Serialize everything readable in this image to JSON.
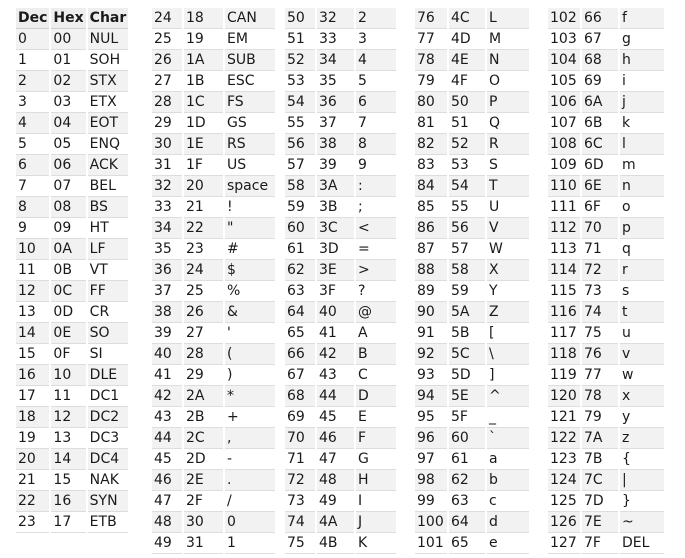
{
  "header": {
    "dec": "Dec",
    "hex": "Hex",
    "char": "Char"
  },
  "columns": [
    [
      [
        "0",
        "00",
        "NUL"
      ],
      [
        "1",
        "01",
        "SOH"
      ],
      [
        "2",
        "02",
        "STX"
      ],
      [
        "3",
        "03",
        "ETX"
      ],
      [
        "4",
        "04",
        "EOT"
      ],
      [
        "5",
        "05",
        "ENQ"
      ],
      [
        "6",
        "06",
        "ACK"
      ],
      [
        "7",
        "07",
        "BEL"
      ],
      [
        "8",
        "08",
        "BS"
      ],
      [
        "9",
        "09",
        "HT"
      ],
      [
        "10",
        "0A",
        "LF"
      ],
      [
        "11",
        "0B",
        "VT"
      ],
      [
        "12",
        "0C",
        "FF"
      ],
      [
        "13",
        "0D",
        "CR"
      ],
      [
        "14",
        "0E",
        "SO"
      ],
      [
        "15",
        "0F",
        "SI"
      ],
      [
        "16",
        "10",
        "DLE"
      ],
      [
        "17",
        "11",
        "DC1"
      ],
      [
        "18",
        "12",
        "DC2"
      ],
      [
        "19",
        "13",
        "DC3"
      ],
      [
        "20",
        "14",
        "DC4"
      ],
      [
        "21",
        "15",
        "NAK"
      ],
      [
        "22",
        "16",
        "SYN"
      ],
      [
        "23",
        "17",
        "ETB"
      ]
    ],
    [
      [
        "24",
        "18",
        "CAN"
      ],
      [
        "25",
        "19",
        "EM"
      ],
      [
        "26",
        "1A",
        "SUB"
      ],
      [
        "27",
        "1B",
        "ESC"
      ],
      [
        "28",
        "1C",
        "FS"
      ],
      [
        "29",
        "1D",
        "GS"
      ],
      [
        "30",
        "1E",
        "RS"
      ],
      [
        "31",
        "1F",
        "US"
      ],
      [
        "32",
        "20",
        "space"
      ],
      [
        "33",
        "21",
        "!"
      ],
      [
        "34",
        "22",
        "\""
      ],
      [
        "35",
        "23",
        "#"
      ],
      [
        "36",
        "24",
        "$"
      ],
      [
        "37",
        "25",
        "%"
      ],
      [
        "38",
        "26",
        "&"
      ],
      [
        "39",
        "27",
        "'"
      ],
      [
        "40",
        "28",
        "("
      ],
      [
        "41",
        "29",
        ")"
      ],
      [
        "42",
        "2A",
        "*"
      ],
      [
        "43",
        "2B",
        "+"
      ],
      [
        "44",
        "2C",
        ","
      ],
      [
        "45",
        "2D",
        "-"
      ],
      [
        "46",
        "2E",
        "."
      ],
      [
        "47",
        "2F",
        "/"
      ],
      [
        "48",
        "30",
        "0"
      ],
      [
        "49",
        "31",
        "1"
      ]
    ],
    [
      [
        "50",
        "32",
        "2"
      ],
      [
        "51",
        "33",
        "3"
      ],
      [
        "52",
        "34",
        "4"
      ],
      [
        "53",
        "35",
        "5"
      ],
      [
        "54",
        "36",
        "6"
      ],
      [
        "55",
        "37",
        "7"
      ],
      [
        "56",
        "38",
        "8"
      ],
      [
        "57",
        "39",
        "9"
      ],
      [
        "58",
        "3A",
        ":"
      ],
      [
        "59",
        "3B",
        ";"
      ],
      [
        "60",
        "3C",
        "<"
      ],
      [
        "61",
        "3D",
        "="
      ],
      [
        "62",
        "3E",
        ">"
      ],
      [
        "63",
        "3F",
        "?"
      ],
      [
        "64",
        "40",
        "@"
      ],
      [
        "65",
        "41",
        "A"
      ],
      [
        "66",
        "42",
        "B"
      ],
      [
        "67",
        "43",
        "C"
      ],
      [
        "68",
        "44",
        "D"
      ],
      [
        "69",
        "45",
        "E"
      ],
      [
        "70",
        "46",
        "F"
      ],
      [
        "71",
        "47",
        "G"
      ],
      [
        "72",
        "48",
        "H"
      ],
      [
        "73",
        "49",
        "I"
      ],
      [
        "74",
        "4A",
        "J"
      ],
      [
        "75",
        "4B",
        "K"
      ]
    ],
    [
      [
        "76",
        "4C",
        "L"
      ],
      [
        "77",
        "4D",
        "M"
      ],
      [
        "78",
        "4E",
        "N"
      ],
      [
        "79",
        "4F",
        "O"
      ],
      [
        "80",
        "50",
        "P"
      ],
      [
        "81",
        "51",
        "Q"
      ],
      [
        "82",
        "52",
        "R"
      ],
      [
        "83",
        "53",
        "S"
      ],
      [
        "84",
        "54",
        "T"
      ],
      [
        "85",
        "55",
        "U"
      ],
      [
        "86",
        "56",
        "V"
      ],
      [
        "87",
        "57",
        "W"
      ],
      [
        "88",
        "58",
        "X"
      ],
      [
        "89",
        "59",
        "Y"
      ],
      [
        "90",
        "5A",
        "Z"
      ],
      [
        "91",
        "5B",
        "["
      ],
      [
        "92",
        "5C",
        "\\"
      ],
      [
        "93",
        "5D",
        "]"
      ],
      [
        "94",
        "5E",
        "^"
      ],
      [
        "95",
        "5F",
        "_"
      ],
      [
        "96",
        "60",
        "`"
      ],
      [
        "97",
        "61",
        "a"
      ],
      [
        "98",
        "62",
        "b"
      ],
      [
        "99",
        "63",
        "c"
      ],
      [
        "100",
        "64",
        "d"
      ],
      [
        "101",
        "65",
        "e"
      ]
    ],
    [
      [
        "102",
        "66",
        "f"
      ],
      [
        "103",
        "67",
        "g"
      ],
      [
        "104",
        "68",
        "h"
      ],
      [
        "105",
        "69",
        "i"
      ],
      [
        "106",
        "6A",
        "j"
      ],
      [
        "107",
        "6B",
        "k"
      ],
      [
        "108",
        "6C",
        "l"
      ],
      [
        "109",
        "6D",
        "m"
      ],
      [
        "110",
        "6E",
        "n"
      ],
      [
        "111",
        "6F",
        "o"
      ],
      [
        "112",
        "70",
        "p"
      ],
      [
        "113",
        "71",
        "q"
      ],
      [
        "114",
        "72",
        "r"
      ],
      [
        "115",
        "73",
        "s"
      ],
      [
        "116",
        "74",
        "t"
      ],
      [
        "117",
        "75",
        "u"
      ],
      [
        "118",
        "76",
        "v"
      ],
      [
        "119",
        "77",
        "w"
      ],
      [
        "120",
        "78",
        "x"
      ],
      [
        "121",
        "79",
        "y"
      ],
      [
        "122",
        "7A",
        "z"
      ],
      [
        "123",
        "7B",
        "{"
      ],
      [
        "124",
        "7C",
        "|"
      ],
      [
        "125",
        "7D",
        "}"
      ],
      [
        "126",
        "7E",
        "~"
      ],
      [
        "127",
        "7F",
        "DEL"
      ]
    ]
  ]
}
